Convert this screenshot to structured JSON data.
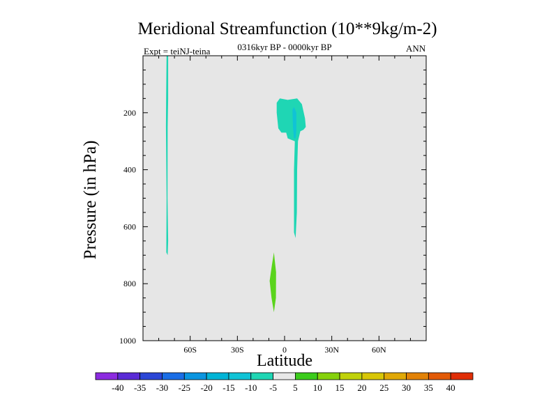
{
  "chart_data": {
    "type": "heatmap",
    "title": "Meridional Streamfunction (10**9kg/m-2)",
    "subtitle": "0316kyr BP - 0000kyr BP",
    "left_label": "Expt = teiNJ-teina",
    "right_label": "ANN",
    "xlabel": "Latitude",
    "ylabel": "Pressure (in hPa)",
    "xlim": [
      -90,
      90
    ],
    "ylim": [
      1000,
      0
    ],
    "x_ticks": [
      {
        "value": -60,
        "label": "60S"
      },
      {
        "value": -30,
        "label": "30S"
      },
      {
        "value": 0,
        "label": "0"
      },
      {
        "value": 30,
        "label": "30N"
      },
      {
        "value": 60,
        "label": "60N"
      }
    ],
    "y_ticks": [
      {
        "value": 200,
        "label": "200"
      },
      {
        "value": 400,
        "label": "400"
      },
      {
        "value": 600,
        "label": "600"
      },
      {
        "value": 800,
        "label": "800"
      },
      {
        "value": 1000,
        "label": "1000"
      }
    ],
    "background_color": "#e6e6e6",
    "contour_regions": [
      {
        "name": "southern-high-latitude-negative-band",
        "level": "-10 to -5",
        "color": "#1fd6b4",
        "polygon": [
          [
            -75,
            0
          ],
          [
            -74,
            0
          ],
          [
            -74,
            150
          ],
          [
            -74.3,
            250
          ],
          [
            -74.4,
            500
          ],
          [
            -74,
            650
          ],
          [
            -74.3,
            700
          ],
          [
            -75.2,
            690
          ],
          [
            -75,
            500
          ],
          [
            -75.4,
            250
          ],
          [
            -75.3,
            140
          ]
        ]
      },
      {
        "name": "upper-tropical-negative-cell",
        "level": "-10 to -5",
        "color": "#1fd6b4",
        "polygon": [
          [
            -5,
            165
          ],
          [
            -3,
            150
          ],
          [
            2,
            155
          ],
          [
            8,
            150
          ],
          [
            11,
            170
          ],
          [
            13,
            220
          ],
          [
            13.5,
            250
          ],
          [
            12,
            260
          ],
          [
            10,
            265
          ],
          [
            8.5,
            300
          ],
          [
            8,
            400
          ],
          [
            7.8,
            550
          ],
          [
            7,
            640
          ],
          [
            6,
            620
          ],
          [
            6,
            500
          ],
          [
            6,
            400
          ],
          [
            6.5,
            300
          ],
          [
            2,
            290
          ],
          [
            1,
            270
          ],
          [
            -2,
            270
          ],
          [
            -4,
            255
          ],
          [
            -5,
            200
          ]
        ]
      },
      {
        "name": "upper-tropical-negative-core",
        "level": "-15 to -10",
        "color": "#10c3d6",
        "polygon": [
          [
            5,
            190
          ],
          [
            6,
            180
          ],
          [
            7.5,
            200
          ],
          [
            7.5,
            260
          ],
          [
            7,
            290
          ],
          [
            6,
            290
          ],
          [
            5.3,
            250
          ]
        ]
      },
      {
        "name": "lower-tropical-positive-cell",
        "level": "5 to 10",
        "color": "#5ad41c",
        "polygon": [
          [
            -6.8,
            690
          ],
          [
            -5.4,
            760
          ],
          [
            -5.5,
            850
          ],
          [
            -6.8,
            900
          ],
          [
            -8.3,
            850
          ],
          [
            -9.5,
            790
          ],
          [
            -8.2,
            740
          ]
        ]
      }
    ],
    "colorbar": {
      "labels": [
        "-40",
        "-35",
        "-30",
        "-25",
        "-20",
        "-15",
        "-10",
        "-5",
        "5",
        "10",
        "15",
        "20",
        "25",
        "30",
        "35",
        "40"
      ],
      "colors": [
        "#8c2be0",
        "#5a2bd6",
        "#2b46d6",
        "#1a6ee6",
        "#0a95e0",
        "#00b4d6",
        "#10c3d6",
        "#1fd6b4",
        "#e8e8e8",
        "#3ccc1c",
        "#86d20c",
        "#c0d20a",
        "#d8c606",
        "#e0a806",
        "#e28206",
        "#e25a06",
        "#e02e06"
      ]
    }
  }
}
